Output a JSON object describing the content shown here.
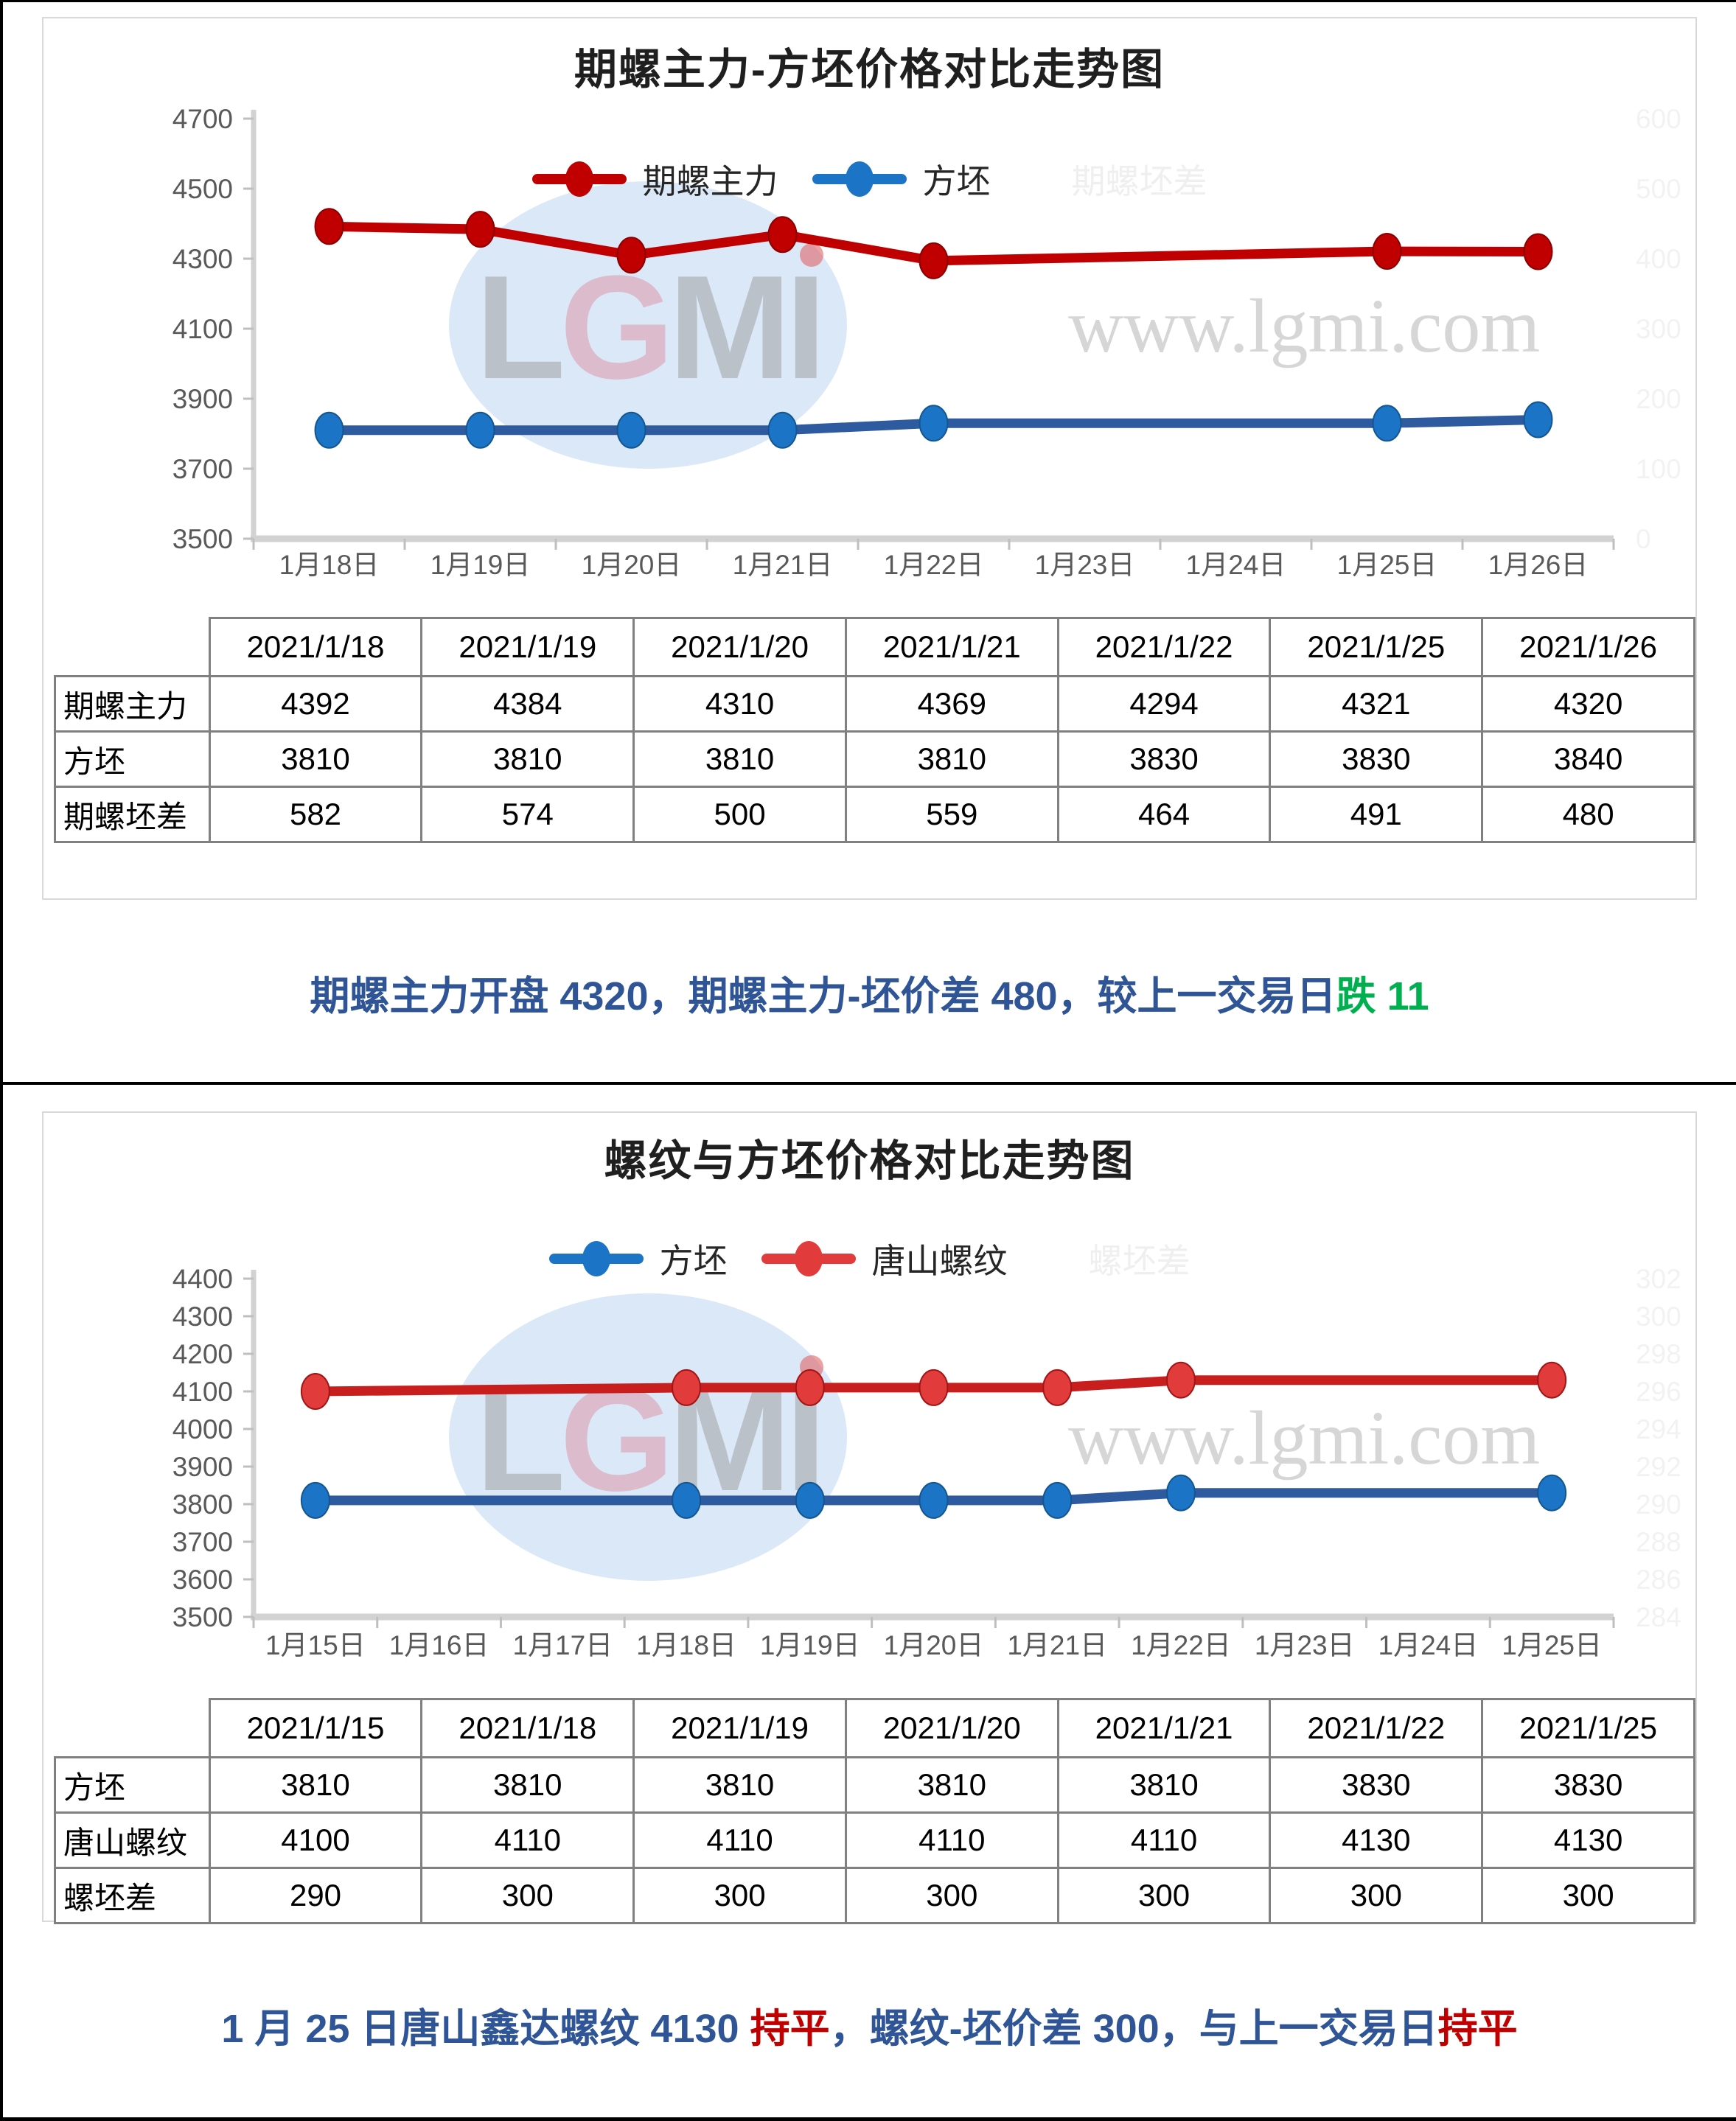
{
  "chart_data": [
    {
      "type": "line",
      "title": "期螺主力-方坯价格对比走势图",
      "categories": [
        "1月18日",
        "1月19日",
        "1月20日",
        "1月21日",
        "1月22日",
        "1月23日",
        "1月24日",
        "1月25日",
        "1月26日"
      ],
      "series": [
        {
          "name": "期螺主力",
          "color": "#C00000",
          "marker_color": "#C00000",
          "marker_stroke": "#8A0000",
          "values": [
            4392,
            4384,
            4310,
            4369,
            4294,
            null,
            null,
            4321,
            4320
          ]
        },
        {
          "name": "方坯",
          "color": "#2E5AA0",
          "marker_color": "#1B74C5",
          "marker_stroke": "#14568F",
          "values": [
            3810,
            3810,
            3810,
            3810,
            3830,
            null,
            null,
            3830,
            3840
          ]
        }
      ],
      "ylim": [
        3500,
        4700
      ],
      "yticks": [
        4700,
        4500,
        4300,
        4100,
        3900,
        3700,
        3500
      ],
      "secondary_yticks": [
        "600",
        "500",
        "400",
        "300",
        "200",
        "100",
        "0"
      ],
      "secondary_axis_color": "#F2F2F2",
      "hidden_series_name": "期螺坯差",
      "grid": false,
      "legend_position": "top-center",
      "axis_label_color": "#595959",
      "watermark": {
        "logo": "LGMI",
        "url": "www.lgmi.com"
      },
      "table": {
        "corner": "",
        "col_headers": [
          "2021/1/18",
          "2021/1/19",
          "2021/1/20",
          "2021/1/21",
          "2021/1/22",
          "2021/1/25",
          "2021/1/26"
        ],
        "rows": [
          {
            "label": "期螺主力",
            "values": [
              "4392",
              "4384",
              "4310",
              "4369",
              "4294",
              "4321",
              "4320"
            ]
          },
          {
            "label": "方坯",
            "values": [
              "3810",
              "3810",
              "3810",
              "3810",
              "3830",
              "3830",
              "3840"
            ]
          },
          {
            "label": "期螺坯差",
            "values": [
              "582",
              "574",
              "500",
              "559",
              "464",
              "491",
              "480"
            ]
          }
        ]
      },
      "summary": [
        {
          "text": "期螺主力开盘 4320，期螺主力-坯价差 480，较上一交易日",
          "color": "#2F5597"
        },
        {
          "text": "跌 11",
          "color": "#00B050"
        }
      ]
    },
    {
      "type": "line",
      "title": "螺纹与方坯价格对比走势图",
      "categories": [
        "1月15日",
        "1月16日",
        "1月17日",
        "1月18日",
        "1月19日",
        "1月20日",
        "1月21日",
        "1月22日",
        "1月23日",
        "1月24日",
        "1月25日"
      ],
      "series": [
        {
          "name": "方坯",
          "color": "#2E5AA0",
          "marker_color": "#1B74C5",
          "marker_stroke": "#14568F",
          "values": [
            3810,
            null,
            null,
            3810,
            3810,
            3810,
            3810,
            3830,
            null,
            null,
            3830
          ]
        },
        {
          "name": "唐山螺纹",
          "color": "#C81E1E",
          "marker_color": "#E23B3B",
          "marker_stroke": "#A01515",
          "values": [
            4100,
            null,
            null,
            4110,
            4110,
            4110,
            4110,
            4130,
            null,
            null,
            4130
          ]
        }
      ],
      "ylim": [
        3500,
        4400
      ],
      "yticks": [
        4400,
        4300,
        4200,
        4100,
        4000,
        3900,
        3800,
        3700,
        3600,
        3500
      ],
      "secondary_yticks": [
        "302",
        "300",
        "298",
        "296",
        "294",
        "292",
        "290",
        "288",
        "286",
        "284"
      ],
      "secondary_axis_color": "#F2F2F2",
      "hidden_series_name": "螺坯差",
      "grid": false,
      "legend_position": "top-center",
      "axis_label_color": "#595959",
      "watermark": {
        "logo": "LGMI",
        "url": "www.lgmi.com"
      },
      "table": {
        "corner": "",
        "col_headers": [
          "2021/1/15",
          "2021/1/18",
          "2021/1/19",
          "2021/1/20",
          "2021/1/21",
          "2021/1/22",
          "2021/1/25"
        ],
        "rows": [
          {
            "label": "方坯",
            "values": [
              "3810",
              "3810",
              "3810",
              "3810",
              "3810",
              "3830",
              "3830"
            ]
          },
          {
            "label": "唐山螺纹",
            "values": [
              "4100",
              "4110",
              "4110",
              "4110",
              "4110",
              "4130",
              "4130"
            ]
          },
          {
            "label": "螺坯差",
            "values": [
              "290",
              "300",
              "300",
              "300",
              "300",
              "300",
              "300"
            ]
          }
        ]
      },
      "summary": [
        {
          "text": "1 月 25 日唐山鑫达螺纹 4130 ",
          "color": "#2F5597"
        },
        {
          "text": "持平",
          "color": "#C00000"
        },
        {
          "text": "，螺纹-坯价差 300，与上一交易日",
          "color": "#2F5597"
        },
        {
          "text": "持平",
          "color": "#C00000"
        }
      ]
    }
  ],
  "watermark_colors": {
    "ellipse": "#CFE0F5",
    "letter_gray": "#9C9C9C",
    "letter_g": "#DC8FA2",
    "dot": "#E05555",
    "url_text": "#CFCFCF"
  }
}
